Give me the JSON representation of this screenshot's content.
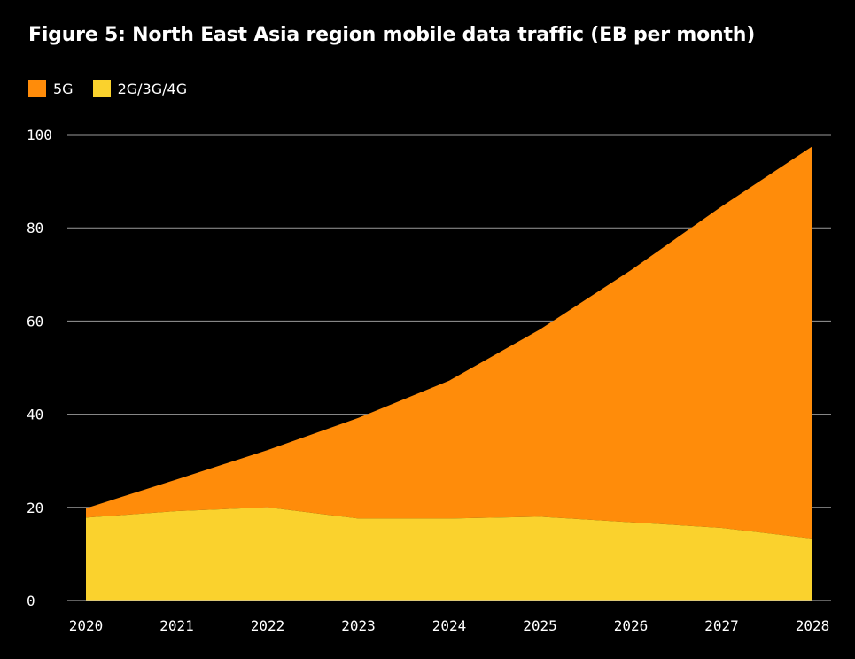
{
  "chart_data": {
    "type": "area",
    "stacked": true,
    "title": "Figure 5: North East Asia region mobile data traffic (EB per month)",
    "xlabel": "",
    "ylabel": "",
    "categories": [
      "2020",
      "2021",
      "2022",
      "2023",
      "2024",
      "2025",
      "2026",
      "2027",
      "2028"
    ],
    "ylim": [
      0,
      100
    ],
    "yticks": [
      "0",
      "20",
      "40",
      "60",
      "80",
      "100"
    ],
    "grid": "horizontal",
    "legend_position": "top-left",
    "series": [
      {
        "name": "5G",
        "color": "#FF8C0A",
        "values": [
          2.0,
          6.8,
          12.3,
          21.6,
          29.6,
          40.2,
          54.1,
          69.0,
          84.2
        ]
      },
      {
        "name": "2G/3G/4G",
        "color": "#FAD22D",
        "values": [
          17.8,
          19.2,
          20.0,
          17.6,
          17.6,
          18.0,
          16.8,
          15.6,
          13.3
        ]
      }
    ]
  }
}
